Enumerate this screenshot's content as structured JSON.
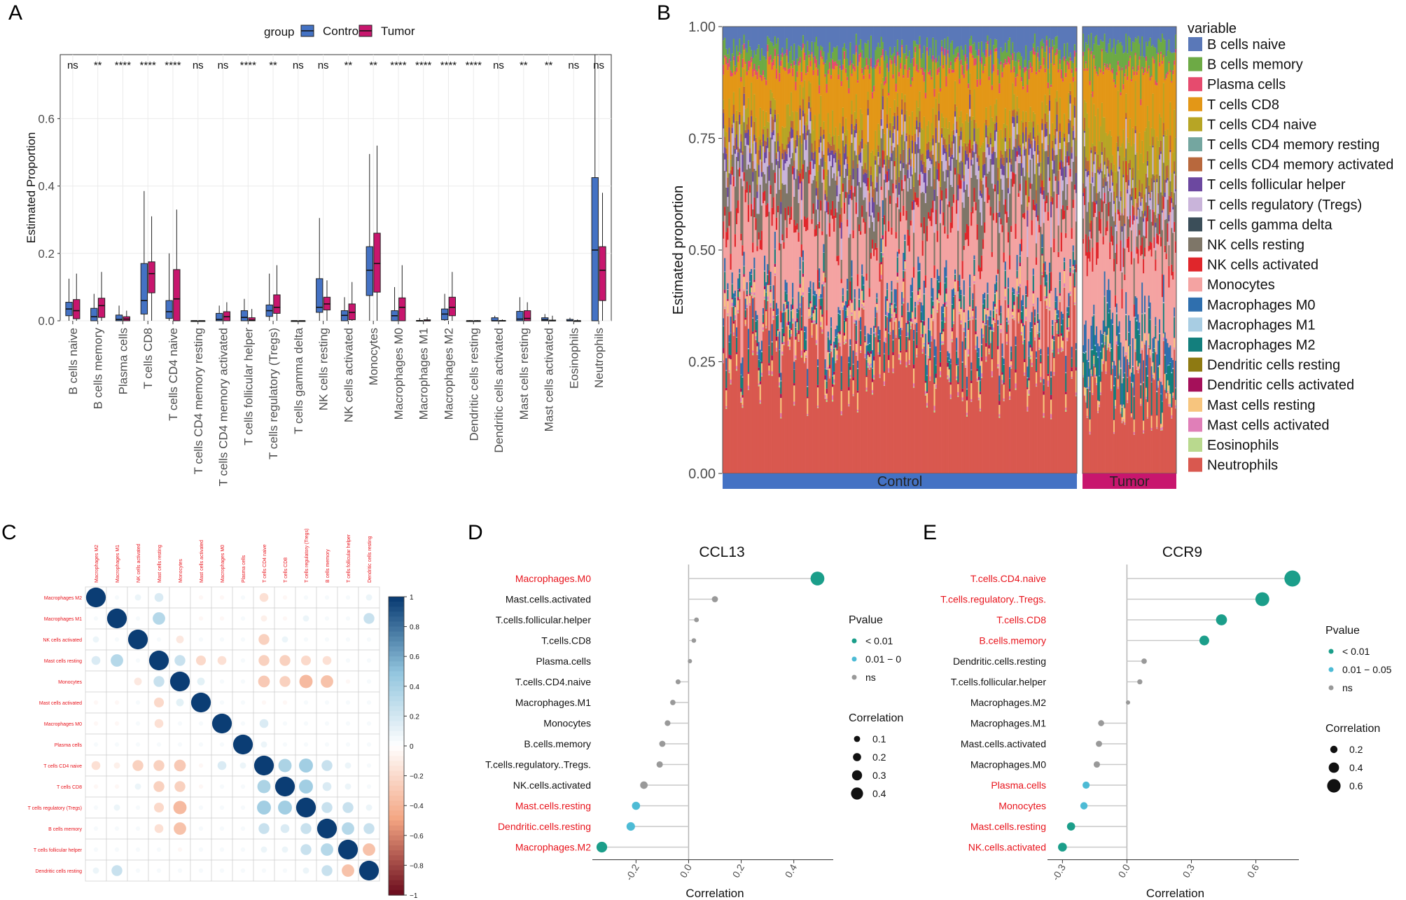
{
  "panel_labels": [
    "A",
    "B",
    "C",
    "D",
    "E"
  ],
  "colors": {
    "control": "#4472C4",
    "tumor": "#C8166E",
    "sig_green": "#1B9E8A",
    "mid_blue": "#4DBBD5",
    "ns_grey": "#999999",
    "red_label": "#E8141C",
    "corr_pos": "#0B3D74",
    "corr_neg": "#6E0F1F"
  },
  "chart_data": [
    {
      "id": "A",
      "type": "box",
      "ylabel": "Estimated Proportion",
      "ylim": [
        0,
        0.79
      ],
      "yticks": [
        "0.0",
        "0.2",
        "0.4",
        "0.6"
      ],
      "legend": {
        "title": "group",
        "entries": [
          "Control",
          "Tumor"
        ],
        "placement": "top"
      },
      "categories": [
        "B cells naive",
        "B cells memory",
        "Plasma cells",
        "T cells CD8",
        "T cells CD4 naive",
        "T cells CD4 memory resting",
        "T cells CD4 memory activated",
        "T cells follicular helper",
        "T cells regulatory (Tregs)",
        "T cells gamma delta",
        "NK cells resting",
        "NK cells activated",
        "Monocytes",
        "Macrophages M0",
        "Macrophages M1",
        "Macrophages M2",
        "Dendritic cells resting",
        "Dendritic cells activated",
        "Mast cells resting",
        "Mast cells activated",
        "Eosinophils",
        "Neutrophils"
      ],
      "significance": [
        "ns",
        "**",
        "****",
        "****",
        "****",
        "ns",
        "ns",
        "****",
        "**",
        "ns",
        "ns",
        "**",
        "**",
        "****",
        "****",
        "****",
        "****",
        "ns",
        "**",
        "**",
        "ns",
        "ns"
      ],
      "series": [
        {
          "name": "Control",
          "values": [
            [
              0.0,
              0.015,
              0.035,
              0.055,
              0.125
            ],
            [
              0.0,
              0.0,
              0.012,
              0.037,
              0.08
            ],
            [
              0.0,
              0.0,
              0.004,
              0.017,
              0.045
            ],
            [
              0.0,
              0.02,
              0.06,
              0.17,
              0.385
            ],
            [
              0.0,
              0.007,
              0.027,
              0.06,
              0.2
            ],
            [
              0.0,
              0.0,
              0.0,
              0.0,
              0.0
            ],
            [
              0.0,
              0.0,
              0.004,
              0.022,
              0.045
            ],
            [
              0.0,
              0.0,
              0.01,
              0.03,
              0.065
            ],
            [
              0.0,
              0.013,
              0.03,
              0.047,
              0.14
            ],
            [
              0.0,
              0.0,
              0.0,
              0.0,
              0.0
            ],
            [
              0.0,
              0.025,
              0.04,
              0.125,
              0.305
            ],
            [
              0.0,
              0.0,
              0.016,
              0.03,
              0.07
            ],
            [
              0.0,
              0.075,
              0.15,
              0.22,
              0.495
            ],
            [
              0.0,
              0.0,
              0.015,
              0.03,
              0.1
            ],
            [
              0.0,
              0.0,
              0.0,
              0.001,
              0.008
            ],
            [
              0.0,
              0.003,
              0.02,
              0.035,
              0.08
            ],
            [
              0.0,
              0.0,
              0.0,
              0.0,
              0.002
            ],
            [
              0.0,
              0.0,
              0.0,
              0.009,
              0.015
            ],
            [
              0.0,
              0.0,
              0.005,
              0.028,
              0.07
            ],
            [
              0.0,
              0.0,
              0.003,
              0.009,
              0.02
            ],
            [
              0.0,
              0.0,
              0.0,
              0.004,
              0.009
            ],
            [
              0.0,
              0.0,
              0.21,
              0.425,
              0.79
            ]
          ]
        },
        {
          "name": "Tumor",
          "values": [
            [
              0.0,
              0.006,
              0.03,
              0.063,
              0.14
            ],
            [
              0.0,
              0.01,
              0.045,
              0.067,
              0.145
            ],
            [
              0.0,
              0.0,
              0.005,
              0.012,
              0.03
            ],
            [
              0.0,
              0.083,
              0.14,
              0.175,
              0.31
            ],
            [
              0.0,
              0.0,
              0.065,
              0.152,
              0.33
            ],
            [
              0.0,
              0.0,
              0.0,
              0.0,
              0.0
            ],
            [
              0.0,
              0.0,
              0.012,
              0.027,
              0.055
            ],
            [
              0.0,
              0.0,
              0.002,
              0.009,
              0.035
            ],
            [
              0.0,
              0.022,
              0.04,
              0.077,
              0.165
            ],
            [
              0.0,
              0.0,
              0.0,
              0.0,
              0.0
            ],
            [
              0.0,
              0.032,
              0.05,
              0.07,
              0.12
            ],
            [
              0.0,
              0.003,
              0.025,
              0.05,
              0.115
            ],
            [
              0.0,
              0.085,
              0.17,
              0.26,
              0.52
            ],
            [
              0.0,
              0.0,
              0.04,
              0.068,
              0.165
            ],
            [
              0.0,
              0.0,
              0.0,
              0.003,
              0.01
            ],
            [
              0.0,
              0.015,
              0.04,
              0.07,
              0.145
            ],
            [
              0.0,
              0.0,
              0.0,
              0.0,
              0.002
            ],
            [
              0.0,
              0.0,
              0.0,
              0.001,
              0.004
            ],
            [
              0.0,
              0.0,
              0.007,
              0.03,
              0.055
            ],
            [
              0.0,
              0.0,
              0.0,
              0.002,
              0.015
            ],
            [
              0.0,
              0.0,
              0.0,
              0.0,
              0.004
            ],
            [
              0.0,
              0.06,
              0.15,
              0.22,
              0.38
            ]
          ]
        }
      ]
    },
    {
      "id": "B",
      "type": "area",
      "ylabel": "Estimated proportion",
      "ylim": [
        0,
        1
      ],
      "yticks": [
        "0.00",
        "0.25",
        "0.50",
        "0.75",
        "1.00"
      ],
      "legend_title": "variable",
      "groups": [
        "Control",
        "Tumor"
      ],
      "variables": [
        "B cells naive",
        "B cells memory",
        "Plasma cells",
        "T cells CD8",
        "T cells CD4 naive",
        "T cells CD4 memory resting",
        "T cells CD4 memory activated",
        "T cells follicular helper",
        "T cells regulatory (Tregs)",
        "T cells gamma delta",
        "NK cells resting",
        "NK cells activated",
        "Monocytes",
        "Macrophages M0",
        "Macrophages M1",
        "Macrophages M2",
        "Dendritic cells resting",
        "Dendritic cells activated",
        "Mast cells resting",
        "Mast cells activated",
        "Eosinophils",
        "Neutrophils"
      ],
      "variable_colors": [
        "#5A78B8",
        "#6DAA45",
        "#E64B6E",
        "#E39717",
        "#B7A525",
        "#74A6A0",
        "#B8683D",
        "#6C48A0",
        "#C9B4DA",
        "#3B4E59",
        "#7E7668",
        "#E0262B",
        "#F4A3A2",
        "#2F6FAE",
        "#A8CDE3",
        "#137F7D",
        "#8E7A12",
        "#A5105A",
        "#F7C57E",
        "#E07FB8",
        "#B9D98E",
        "#D9584F"
      ],
      "mean_proportions": {
        "Control": [
          0.045,
          0.027,
          0.01,
          0.1,
          0.04,
          0.0,
          0.015,
          0.018,
          0.035,
          0.0,
          0.07,
          0.02,
          0.16,
          0.02,
          0.001,
          0.025,
          0.0,
          0.005,
          0.02,
          0.005,
          0.002,
          0.25
        ],
        "Tumor": [
          0.04,
          0.048,
          0.007,
          0.14,
          0.09,
          0.0,
          0.02,
          0.007,
          0.05,
          0.0,
          0.06,
          0.03,
          0.18,
          0.045,
          0.002,
          0.05,
          0.0,
          0.001,
          0.02,
          0.004,
          0.001,
          0.18
        ]
      }
    },
    {
      "id": "C",
      "type": "heatmap",
      "labels": [
        "Macrophages M2",
        "Macrophages M1",
        "NK cells activated",
        "Mast cells resting",
        "Monocytes",
        "Mast cells activated",
        "Macrophages M0",
        "Plasma cells",
        "T cells CD4 naive",
        "T cells CD8",
        "T cells regulatory (Tregs)",
        "B cells memory",
        "T cells follicular helper",
        "Dendritic cells resting"
      ],
      "colorbar_ticks": [
        "1",
        "0.8",
        "0.6",
        "0.4",
        "0.2",
        "0",
        "−0.2",
        "−0.4",
        "−0.6",
        "−0.8",
        "−1"
      ],
      "matrix": [
        [
          1,
          0.05,
          0.1,
          0.2,
          0.0,
          -0.05,
          -0.05,
          0.05,
          -0.2,
          -0.05,
          0.05,
          0.05,
          0.05,
          0.1
        ],
        [
          0.05,
          1,
          0.05,
          0.4,
          0.0,
          -0.05,
          -0.05,
          0.05,
          -0.1,
          -0.05,
          0.1,
          0.05,
          0.05,
          0.3
        ],
        [
          0.1,
          0.05,
          1,
          0.05,
          -0.15,
          0.05,
          0.05,
          0.05,
          -0.3,
          0.1,
          0.05,
          0.05,
          0.05,
          0.05
        ],
        [
          0.2,
          0.4,
          0.05,
          1,
          0.3,
          -0.25,
          -0.2,
          0.05,
          -0.3,
          -0.3,
          -0.25,
          -0.2,
          0.05,
          0.05
        ],
        [
          0.0,
          0.0,
          -0.15,
          0.3,
          1,
          0.15,
          0.05,
          0.05,
          -0.35,
          -0.3,
          -0.45,
          -0.4,
          -0.05,
          0.05
        ],
        [
          -0.05,
          -0.05,
          0.05,
          -0.25,
          0.15,
          1,
          0.05,
          0.05,
          -0.05,
          -0.05,
          0.05,
          0.05,
          0.05,
          0.05
        ],
        [
          -0.05,
          -0.05,
          0.05,
          -0.2,
          0.05,
          0.05,
          1,
          0.05,
          0.2,
          0.05,
          0.05,
          0.05,
          0.05,
          0.05
        ],
        [
          0.05,
          0.05,
          0.05,
          0.05,
          0.05,
          0.05,
          0.05,
          1,
          0.1,
          0.05,
          0.05,
          0.05,
          0.05,
          0.05
        ],
        [
          -0.2,
          -0.1,
          -0.3,
          -0.3,
          -0.35,
          -0.05,
          0.2,
          0.1,
          1,
          0.45,
          0.5,
          0.3,
          0.1,
          0.05
        ],
        [
          -0.05,
          -0.05,
          0.1,
          -0.3,
          -0.3,
          -0.05,
          0.05,
          0.05,
          0.45,
          1,
          0.5,
          0.2,
          0.1,
          0.05
        ],
        [
          0.05,
          0.1,
          0.05,
          -0.25,
          -0.45,
          0.05,
          0.05,
          0.05,
          0.5,
          0.5,
          1,
          0.3,
          0.3,
          0.1
        ],
        [
          0.05,
          0.05,
          0.05,
          -0.2,
          -0.4,
          0.05,
          0.05,
          0.05,
          0.3,
          0.2,
          0.3,
          1,
          0.4,
          0.3
        ],
        [
          0.05,
          0.05,
          0.05,
          0.05,
          -0.05,
          0.05,
          0.05,
          0.05,
          0.1,
          0.1,
          0.3,
          0.4,
          1,
          -0.4
        ],
        [
          0.1,
          0.3,
          0.05,
          0.05,
          0.05,
          0.05,
          0.05,
          0.05,
          0.05,
          0.05,
          0.1,
          0.3,
          -0.4,
          1
        ]
      ]
    },
    {
      "id": "D",
      "type": "scatter",
      "subtype": "lollipop",
      "title": "CCL13",
      "xlabel": "Correlation",
      "xlim": [
        -0.35,
        0.55
      ],
      "xticks": [
        "-0.2",
        "0.0",
        "0.2",
        "0.4"
      ],
      "legend": {
        "pvalue_title": "Pvalue",
        "pvalue_entries": [
          "< 0.01",
          "0.01 − 0",
          "ns"
        ],
        "corr_title": "Correlation",
        "corr_entries": [
          "0.1",
          "0.2",
          "0.3",
          "0.4"
        ]
      },
      "points": [
        {
          "label": "Macrophages.M0",
          "value": 0.49,
          "pclass": "sig",
          "red": true
        },
        {
          "label": "Mast.cells.activated",
          "value": 0.1,
          "pclass": "ns",
          "red": false
        },
        {
          "label": "T.cells.follicular.helper",
          "value": 0.03,
          "pclass": "ns",
          "red": false
        },
        {
          "label": "T.cells.CD8",
          "value": 0.02,
          "pclass": "ns",
          "red": false
        },
        {
          "label": "Plasma.cells",
          "value": 0.005,
          "pclass": "ns",
          "red": false
        },
        {
          "label": "T.cells.CD4.naive",
          "value": -0.04,
          "pclass": "ns",
          "red": false
        },
        {
          "label": "Macrophages.M1",
          "value": -0.06,
          "pclass": "ns",
          "red": false
        },
        {
          "label": "Monocytes",
          "value": -0.08,
          "pclass": "ns",
          "red": false
        },
        {
          "label": "B.cells.memory",
          "value": -0.1,
          "pclass": "ns",
          "red": false
        },
        {
          "label": "T.cells.regulatory..Tregs.",
          "value": -0.11,
          "pclass": "ns",
          "red": false
        },
        {
          "label": "NK.cells.activated",
          "value": -0.17,
          "pclass": "ns",
          "red": false
        },
        {
          "label": "Mast.cells.resting",
          "value": -0.2,
          "pclass": "mid",
          "red": true
        },
        {
          "label": "Dendritic.cells.resting",
          "value": -0.22,
          "pclass": "mid",
          "red": true
        },
        {
          "label": "Macrophages.M2",
          "value": -0.33,
          "pclass": "sig",
          "red": true
        }
      ]
    },
    {
      "id": "E",
      "type": "scatter",
      "subtype": "lollipop",
      "title": "CCR9",
      "xlabel": "Correlation",
      "xlim": [
        -0.35,
        0.8
      ],
      "xticks": [
        "-0.3",
        "0.0",
        "0.3",
        "0.6"
      ],
      "legend": {
        "pvalue_title": "Pvalue",
        "pvalue_entries": [
          "< 0.01",
          "0.01 − 0.05",
          "ns"
        ],
        "corr_title": "Correlation",
        "corr_entries": [
          "0.2",
          "0.4",
          "0.6"
        ]
      },
      "points": [
        {
          "label": "T.cells.CD4.naive",
          "value": 0.77,
          "pclass": "sig",
          "red": true
        },
        {
          "label": "T.cells.regulatory..Tregs.",
          "value": 0.63,
          "pclass": "sig",
          "red": true
        },
        {
          "label": "T.cells.CD8",
          "value": 0.44,
          "pclass": "sig",
          "red": true
        },
        {
          "label": "B.cells.memory",
          "value": 0.36,
          "pclass": "sig",
          "red": true
        },
        {
          "label": "Dendritic.cells.resting",
          "value": 0.08,
          "pclass": "ns",
          "red": false
        },
        {
          "label": "T.cells.follicular.helper",
          "value": 0.06,
          "pclass": "ns",
          "red": false
        },
        {
          "label": "Macrophages.M2",
          "value": 0.005,
          "pclass": "ns",
          "red": false
        },
        {
          "label": "Macrophages.M1",
          "value": -0.12,
          "pclass": "ns",
          "red": false
        },
        {
          "label": "Mast.cells.activated",
          "value": -0.13,
          "pclass": "ns",
          "red": false
        },
        {
          "label": "Macrophages.M0",
          "value": -0.14,
          "pclass": "ns",
          "red": false
        },
        {
          "label": "Plasma.cells",
          "value": -0.19,
          "pclass": "mid",
          "red": true
        },
        {
          "label": "Monocytes",
          "value": -0.2,
          "pclass": "mid",
          "red": true
        },
        {
          "label": "Mast.cells.resting",
          "value": -0.26,
          "pclass": "sig",
          "red": true
        },
        {
          "label": "NK.cells.activated",
          "value": -0.3,
          "pclass": "sig",
          "red": true
        }
      ]
    }
  ]
}
